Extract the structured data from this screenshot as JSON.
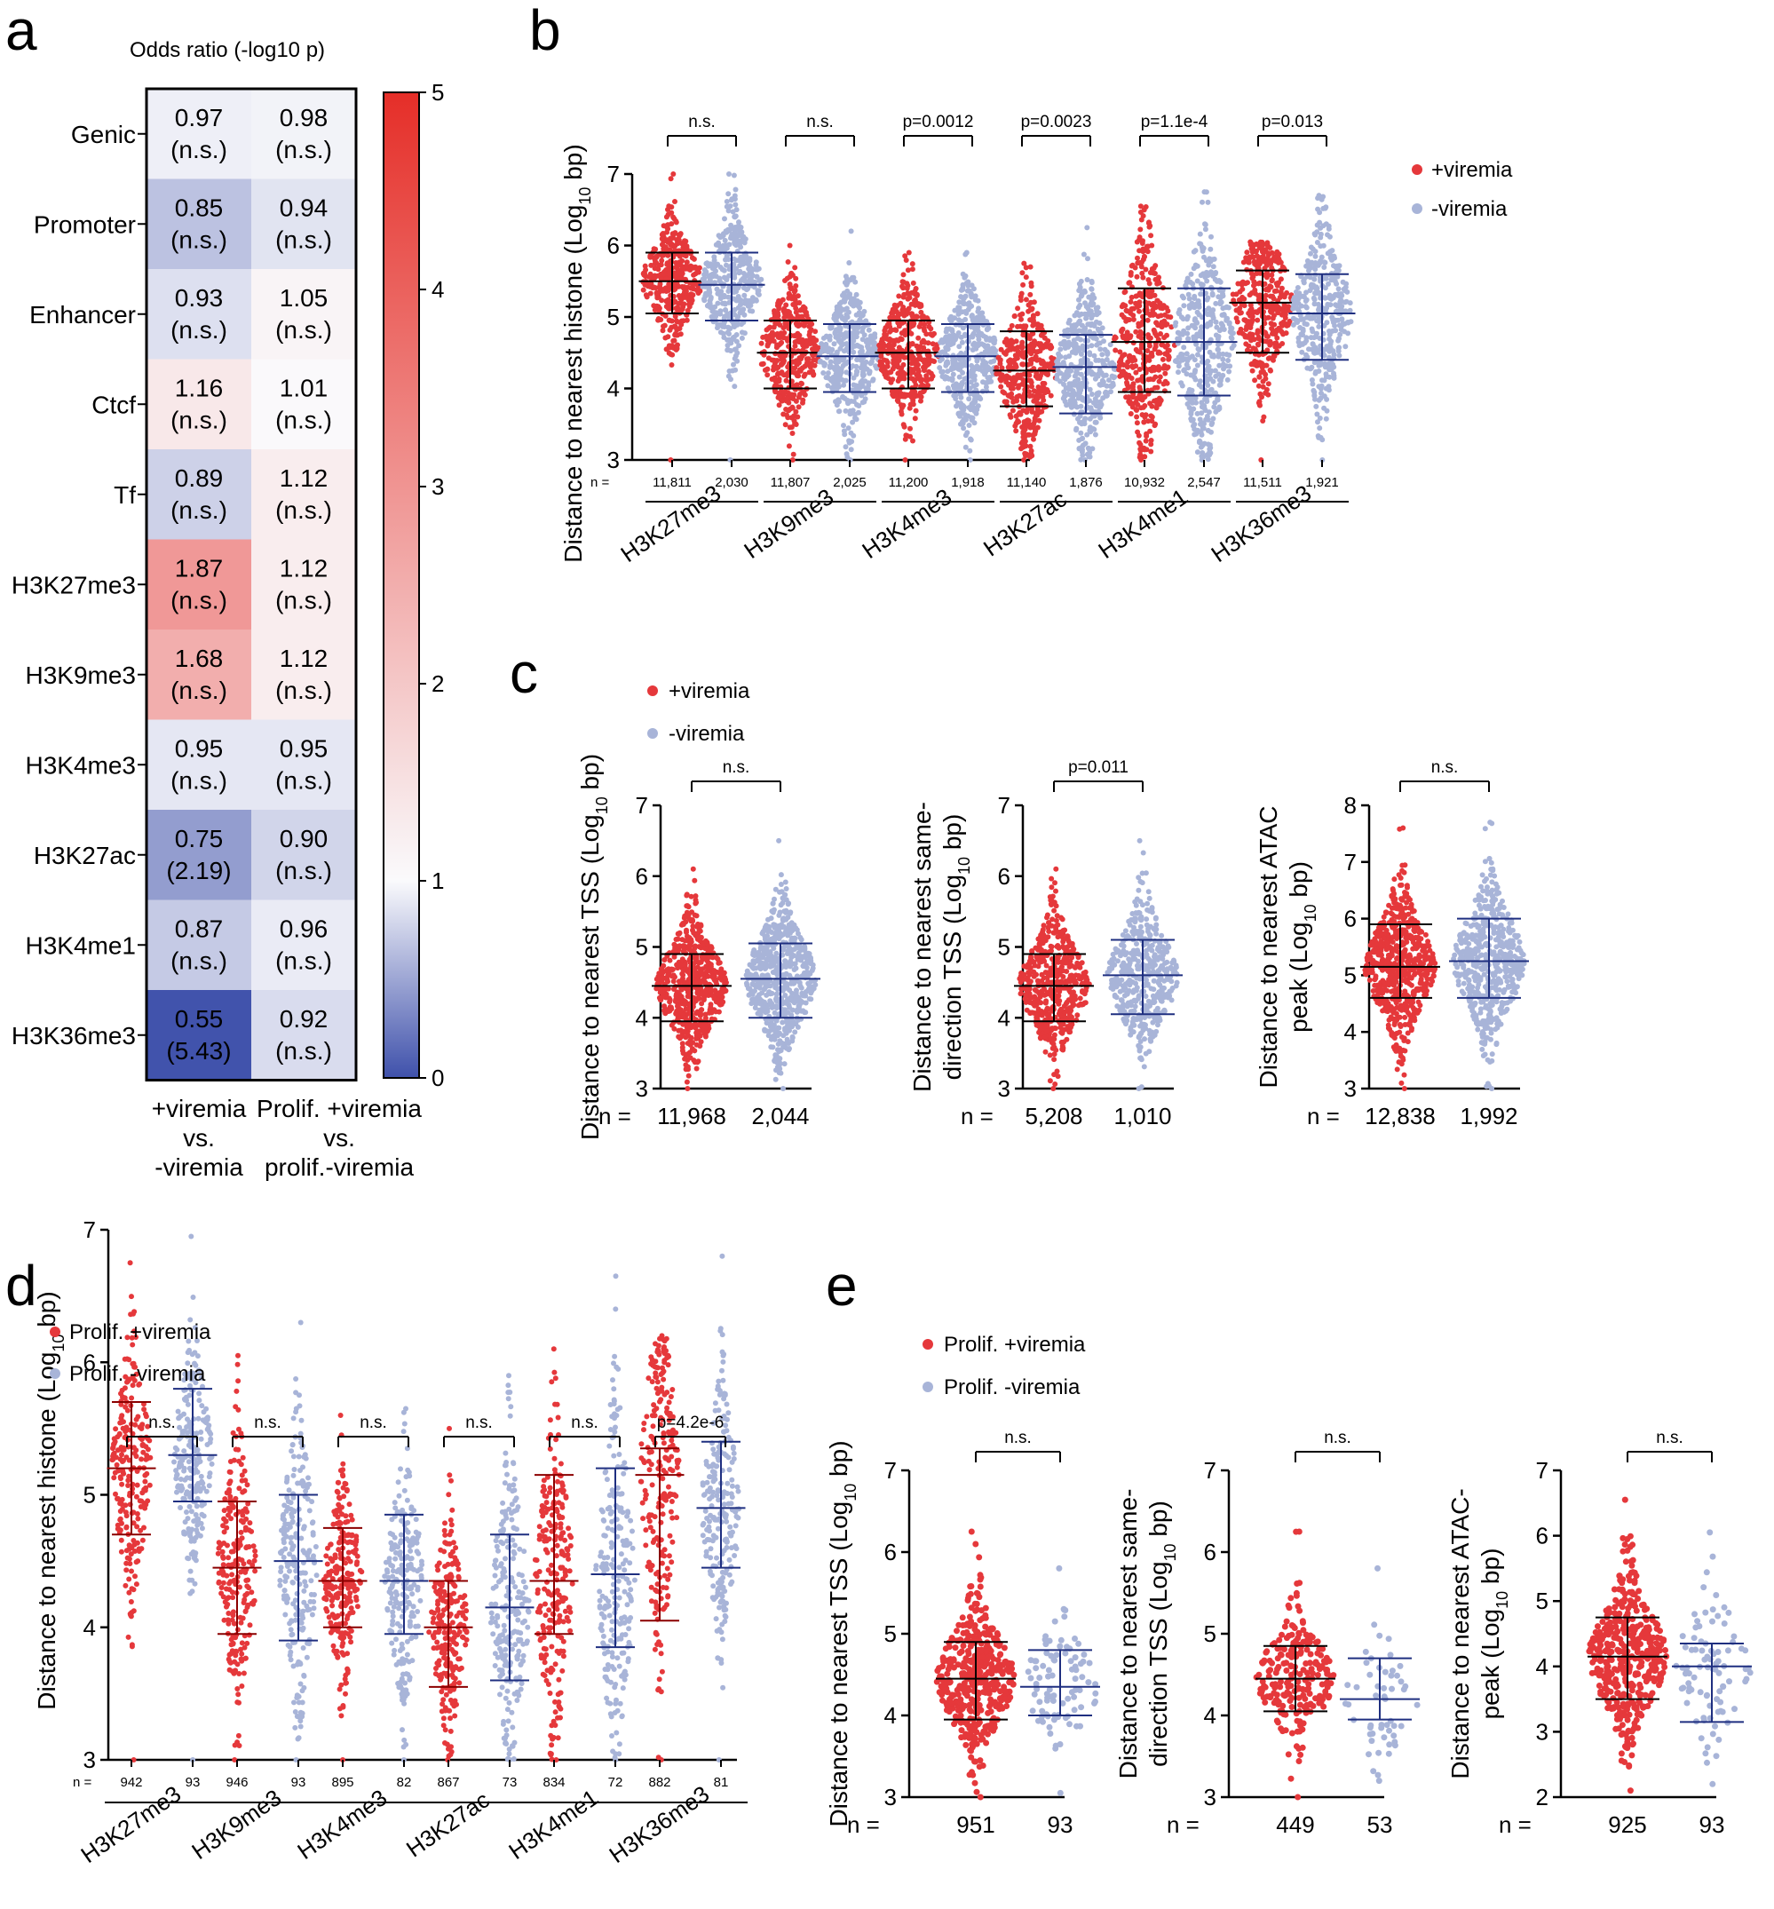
{
  "panels": {
    "a": "a",
    "b": "b",
    "c": "c",
    "d": "d",
    "e": "e"
  },
  "colors": {
    "plus": "#e5383b",
    "minus": "#a8b4d8",
    "plus_line": "#000000",
    "minus_line": "#1f2f80",
    "d_plus_line": "#8b0000"
  },
  "chart_data": [
    {
      "id": "a",
      "type": "heatmap",
      "title": "Odds ratio (-log10 p)",
      "rows": [
        "Genic",
        "Promoter",
        "Enhancer",
        "Ctcf",
        "Tf",
        "H3K27me3",
        "H3K9me3",
        "H3K4me3",
        "H3K27ac",
        "H3K4me1",
        "H3K36me3"
      ],
      "columns": [
        {
          "lines": [
            "+viremia",
            "vs.",
            "-viremia"
          ]
        },
        {
          "lines": [
            "Prolif. +viremia",
            "vs.",
            "prolif.-viremia"
          ]
        }
      ],
      "values": [
        [
          0.97,
          0.98
        ],
        [
          0.85,
          0.94
        ],
        [
          0.93,
          1.05
        ],
        [
          1.16,
          1.01
        ],
        [
          0.89,
          1.12
        ],
        [
          1.87,
          1.12
        ],
        [
          1.68,
          1.12
        ],
        [
          0.95,
          0.95
        ],
        [
          0.75,
          0.9
        ],
        [
          0.87,
          0.96
        ],
        [
          0.55,
          0.92
        ]
      ],
      "value_labels": [
        [
          "0.97",
          "0.98"
        ],
        [
          "0.85",
          "0.94"
        ],
        [
          "0.93",
          "1.05"
        ],
        [
          "1.16",
          "1.01"
        ],
        [
          "0.89",
          "1.12"
        ],
        [
          "1.87",
          "1.12"
        ],
        [
          "1.68",
          "1.12"
        ],
        [
          "0.95",
          "0.95"
        ],
        [
          "0.75",
          "0.90"
        ],
        [
          "0.87",
          "0.96"
        ],
        [
          "0.55",
          "0.92"
        ]
      ],
      "p_labels": [
        [
          "(n.s.)",
          "(n.s.)"
        ],
        [
          "(n.s.)",
          "(n.s.)"
        ],
        [
          "(n.s.)",
          "(n.s.)"
        ],
        [
          "(n.s.)",
          "(n.s.)"
        ],
        [
          "(n.s.)",
          "(n.s.)"
        ],
        [
          "(n.s.)",
          "(n.s.)"
        ],
        [
          "(n.s.)",
          "(n.s.)"
        ],
        [
          "(n.s.)",
          "(n.s.)"
        ],
        [
          "(2.19)",
          "(n.s.)"
        ],
        [
          "(n.s.)",
          "(n.s.)"
        ],
        [
          "(5.43)",
          "(n.s.)"
        ]
      ],
      "colorbar": {
        "range": [
          0,
          5
        ],
        "ticks": [
          "0",
          "1",
          "2",
          "3",
          "4",
          "5"
        ],
        "center": 1
      }
    },
    {
      "id": "b",
      "type": "scatter",
      "ylabel": "Distance to nearest histone (Log",
      "ylabel_sub": "10",
      "ylabel_end": " bp)",
      "ylim": [
        3,
        7
      ],
      "yticks": [
        "3",
        "4",
        "5",
        "6",
        "7"
      ],
      "n_label": "n =",
      "legend": [
        "+viremia",
        "-viremia"
      ],
      "categories": [
        "H3K27me3",
        "H3K9me3",
        "H3K4me3",
        "H3K27ac",
        "H3K4me1",
        "H3K36me3"
      ],
      "pvalues": [
        "n.s.",
        "n.s.",
        "p=0.0012",
        "p=0.0023",
        "p=1.1e-4",
        "p=0.013"
      ],
      "series": [
        {
          "name": "+viremia",
          "n": [
            "11,811",
            "11,807",
            "11,200",
            "11,140",
            "10,932",
            "11,511"
          ],
          "median": [
            5.5,
            4.5,
            4.5,
            4.25,
            4.65,
            5.2
          ],
          "low": [
            5.05,
            4.0,
            4.0,
            3.75,
            3.95,
            4.5
          ],
          "high": [
            5.9,
            4.95,
            4.95,
            4.8,
            5.4,
            5.65
          ],
          "min": [
            3.0,
            3.0,
            3.0,
            3.0,
            3.0,
            3.0
          ],
          "max": [
            7.0,
            6.0,
            5.9,
            5.75,
            6.55,
            6.05
          ]
        },
        {
          "name": "-viremia",
          "n": [
            "2,030",
            "2,025",
            "1,918",
            "1,876",
            "2,547",
            "1,921"
          ],
          "median": [
            5.45,
            4.45,
            4.45,
            4.3,
            4.65,
            5.05
          ],
          "low": [
            4.95,
            3.95,
            3.95,
            3.65,
            3.9,
            4.4
          ],
          "high": [
            5.9,
            4.9,
            4.9,
            4.75,
            5.4,
            5.6
          ],
          "min": [
            3.0,
            3.0,
            3.0,
            3.0,
            3.0,
            3.0
          ],
          "max": [
            7.0,
            6.2,
            5.9,
            6.25,
            6.75,
            6.7
          ]
        }
      ]
    },
    {
      "id": "c",
      "type": "scatter",
      "legend": [
        "+viremia",
        "-viremia"
      ],
      "n_label": "n =",
      "subplots": [
        {
          "ylabel_lines": [
            [
              "Distance to nearest TSS (Log",
              "10",
              " bp)"
            ]
          ],
          "ylim": [
            3,
            7
          ],
          "yticks": [
            "3",
            "4",
            "5",
            "6",
            "7"
          ],
          "pvalue": "n.s.",
          "groups": [
            {
              "n": "11,968",
              "median": 4.45,
              "low": 3.95,
              "high": 4.9,
              "min": 3.0,
              "max": 6.1
            },
            {
              "n": "2,044",
              "median": 4.55,
              "low": 4.0,
              "high": 5.05,
              "min": 3.0,
              "max": 6.5
            }
          ]
        },
        {
          "ylabel_lines": [
            [
              "Distance to nearest same-",
              "",
              ""
            ],
            [
              "direction TSS (Log",
              "10",
              " bp)"
            ]
          ],
          "ylim": [
            3,
            7
          ],
          "yticks": [
            "3",
            "4",
            "5",
            "6",
            "7"
          ],
          "pvalue": "p=0.011",
          "groups": [
            {
              "n": "5,208",
              "median": 4.45,
              "low": 3.95,
              "high": 4.9,
              "min": 3.0,
              "max": 6.1
            },
            {
              "n": "1,010",
              "median": 4.6,
              "low": 4.05,
              "high": 5.1,
              "min": 3.0,
              "max": 6.5
            }
          ]
        },
        {
          "ylabel_lines": [
            [
              "Distance to nearest ATAC",
              "",
              ""
            ],
            [
              "peak (Log",
              "10",
              " bp)"
            ]
          ],
          "ylim": [
            3,
            8
          ],
          "yticks": [
            "3",
            "4",
            "5",
            "6",
            "7",
            "8"
          ],
          "pvalue": "n.s.",
          "groups": [
            {
              "n": "12,838",
              "median": 5.15,
              "low": 4.6,
              "high": 5.9,
              "min": 3.0,
              "max": 7.6
            },
            {
              "n": "1,992",
              "median": 5.25,
              "low": 4.6,
              "high": 6.0,
              "min": 3.0,
              "max": 7.7
            }
          ]
        }
      ]
    },
    {
      "id": "d",
      "type": "scatter",
      "ylabel": "Distance to nearest histone (Log",
      "ylabel_sub": "10",
      "ylabel_end": " bp)",
      "ylim": [
        3,
        7
      ],
      "yticks": [
        "3",
        "4",
        "5",
        "6",
        "7"
      ],
      "n_label": "n =",
      "legend": [
        "Prolif. +viremia",
        "Prolif. -viremia"
      ],
      "categories": [
        "H3K27me3",
        "H3K9me3",
        "H3K4me3",
        "H3K27ac",
        "H3K4me1",
        "H3K36me3"
      ],
      "pvalues": [
        "n.s.",
        "n.s.",
        "n.s.",
        "n.s.",
        "n.s.",
        "p=4.2e-6"
      ],
      "series": [
        {
          "name": "Prolif. +viremia",
          "n": [
            "942",
            "946",
            "895",
            "867",
            "834",
            "882"
          ],
          "median": [
            5.2,
            4.45,
            4.35,
            4.0,
            4.35,
            5.15
          ],
          "low": [
            4.7,
            3.95,
            4.0,
            3.55,
            3.95,
            4.05
          ],
          "high": [
            5.7,
            4.95,
            4.75,
            4.35,
            5.15,
            5.35
          ],
          "min": [
            3.0,
            3.0,
            3.0,
            3.0,
            3.0,
            3.0
          ],
          "max": [
            6.75,
            6.05,
            5.6,
            5.5,
            6.1,
            6.2
          ]
        },
        {
          "name": "Prolif. -viremia",
          "n": [
            "93",
            "93",
            "82",
            "73",
            "72",
            "81"
          ],
          "median": [
            5.3,
            4.5,
            4.35,
            4.15,
            4.4,
            4.9
          ],
          "low": [
            4.95,
            3.9,
            3.95,
            3.6,
            3.85,
            4.45
          ],
          "high": [
            5.8,
            5.0,
            4.85,
            4.7,
            5.2,
            5.4
          ],
          "min": [
            3.0,
            3.0,
            3.0,
            3.0,
            3.0,
            3.0
          ],
          "max": [
            6.95,
            6.3,
            5.65,
            5.9,
            6.65,
            6.8
          ]
        }
      ]
    },
    {
      "id": "e",
      "type": "scatter",
      "legend": [
        "Prolif. +viremia",
        "Prolif. -viremia"
      ],
      "n_label": "n =",
      "subplots": [
        {
          "ylabel_lines": [
            [
              "Distance to nearest TSS (Log",
              "10",
              " bp)"
            ]
          ],
          "ylim": [
            3,
            7
          ],
          "yticks": [
            "3",
            "4",
            "5",
            "6",
            "7"
          ],
          "pvalue": "n.s.",
          "groups": [
            {
              "n": "951",
              "median": 4.45,
              "low": 3.95,
              "high": 4.9,
              "min": 3.0,
              "max": 6.25
            },
            {
              "n": "93",
              "median": 4.35,
              "low": 4.0,
              "high": 4.8,
              "min": 3.05,
              "max": 5.8
            }
          ]
        },
        {
          "ylabel_lines": [
            [
              "Distance to nearest same-",
              "",
              ""
            ],
            [
              "direction TSS (Log",
              "10",
              " bp)"
            ]
          ],
          "ylim": [
            3,
            7
          ],
          "yticks": [
            "3",
            "4",
            "5",
            "6",
            "7"
          ],
          "pvalue": "n.s.",
          "groups": [
            {
              "n": "449",
              "median": 4.45,
              "low": 4.05,
              "high": 4.85,
              "min": 3.0,
              "max": 6.25
            },
            {
              "n": "53",
              "median": 4.2,
              "low": 3.95,
              "high": 4.7,
              "min": 3.2,
              "max": 5.8
            }
          ]
        },
        {
          "ylabel_lines": [
            [
              "Distance to nearest ATAC-",
              "",
              ""
            ],
            [
              "peak (Log",
              "10",
              " bp)"
            ]
          ],
          "ylim": [
            2,
            7
          ],
          "yticks": [
            "2",
            "3",
            "4",
            "5",
            "6",
            "7"
          ],
          "pvalue": "n.s.",
          "groups": [
            {
              "n": "925",
              "median": 4.15,
              "low": 3.5,
              "high": 4.75,
              "min": 2.1,
              "max": 6.55
            },
            {
              "n": "93",
              "median": 4.0,
              "low": 3.15,
              "high": 4.35,
              "min": 2.2,
              "max": 6.05
            }
          ]
        }
      ]
    }
  ]
}
